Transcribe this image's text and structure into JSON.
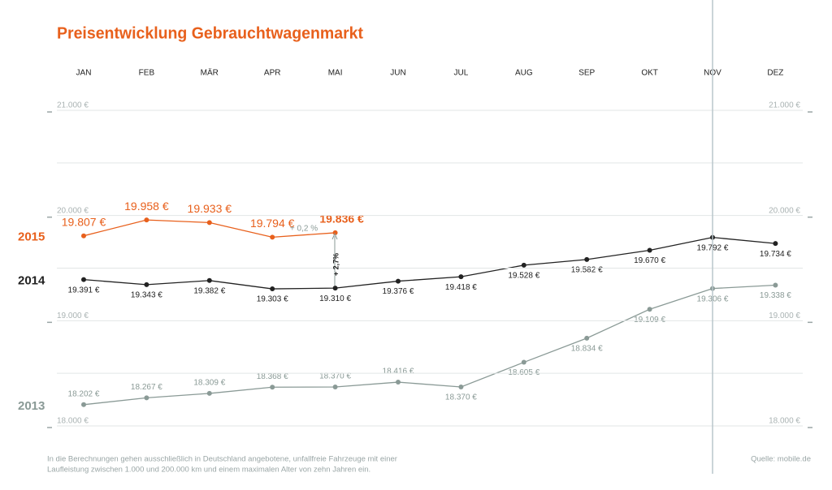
{
  "chart_data": {
    "type": "line",
    "title": "Preisentwicklung Gebrauchtwagenmarkt",
    "categories": [
      "JAN",
      "FEB",
      "MÄR",
      "APR",
      "MAI",
      "JUN",
      "JUL",
      "AUG",
      "SEP",
      "OKT",
      "NOV",
      "DEZ"
    ],
    "series": [
      {
        "name": "2015",
        "color": "#e8601c",
        "values": [
          19807,
          19958,
          19933,
          19794,
          19836,
          null,
          null,
          null,
          null,
          null,
          null,
          null
        ],
        "value_labels": [
          "19.807 €",
          "19.958 €",
          "19.933 €",
          "19.794 €",
          "19.836 €",
          null,
          null,
          null,
          null,
          null,
          null,
          null
        ]
      },
      {
        "name": "2014",
        "color": "#222222",
        "values": [
          19391,
          19343,
          19382,
          19303,
          19310,
          19376,
          19418,
          19528,
          19582,
          19670,
          19792,
          19734
        ],
        "value_labels": [
          "19.391 €",
          "19.343 €",
          "19.382 €",
          "19.303 €",
          "19.310 €",
          "19.376 €",
          "19.418 €",
          "19.528 €",
          "19.582 €",
          "19.670 €",
          "19.792 €",
          "19.734 €"
        ]
      },
      {
        "name": "2013",
        "color": "#8a9a96",
        "values": [
          18202,
          18267,
          18309,
          18368,
          18370,
          18416,
          18370,
          18605,
          18834,
          19109,
          19306,
          19338
        ],
        "value_labels": [
          "18.202 €",
          "18.267 €",
          "18.309 €",
          "18.368 €",
          "18.370 €",
          "18.416 €",
          "18.370 €",
          "18.605 €",
          "18.834 €",
          "19.109 €",
          "19.306 €",
          "19.338 €"
        ]
      }
    ],
    "ylim": [
      18000,
      21000
    ],
    "yticks": [
      {
        "value": 18000,
        "label": "18.000 €"
      },
      {
        "value": 19000,
        "label": "19.000 €"
      },
      {
        "value": 20000,
        "label": "20.000 €"
      },
      {
        "value": 21000,
        "label": "21.000 €"
      }
    ],
    "yminorticks": [
      18500,
      19500,
      20500
    ],
    "grid": true,
    "annotations": [
      "+ 0,2 %",
      "+ 2,7%"
    ],
    "footnote": [
      "In die Berechnungen gehen ausschließlich in Deutschland angebotene, unfallfreie Fahrzeuge mit einer",
      "Laufleistung zwischen 1.000 und 200.000 km und einem maximalen Alter von zehn Jahren ein."
    ],
    "source": "Quelle: mobile.de"
  }
}
